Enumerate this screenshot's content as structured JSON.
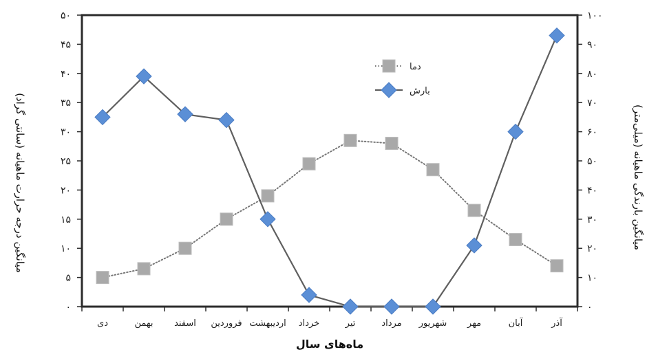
{
  "chart_data": {
    "type": "line",
    "categories": [
      "دی",
      "بهمن",
      "اسفند",
      "فروردین",
      "اردیبهشت",
      "خرداد",
      "تیر",
      "مرداد",
      "شهریور",
      "مهر",
      "آبان",
      "آذر"
    ],
    "xlabel": "ماه‌های سال",
    "ylabel_left": "میانگین درجه حرارت ماهیانه (سانتی گراد)",
    "ylabel_right": "میانگین بارندگی ماهیانه (میلی‌متر)",
    "ylim_left": [
      0,
      50
    ],
    "ylim_right": [
      0,
      100
    ],
    "yticks_left": [
      "۰",
      "۵",
      "۱۰",
      "۱۵",
      "۲۰",
      "۲۵",
      "۳۰",
      "۳۵",
      "۴۰",
      "۴۵",
      "۵۰"
    ],
    "yticks_right": [
      "۰",
      "۱۰",
      "۲۰",
      "۳۰",
      "۴۰",
      "۵۰",
      "۶۰",
      "۷۰",
      "۸۰",
      "۹۰",
      "۱۰۰"
    ],
    "grid": false,
    "legend_position": "top-center",
    "series": [
      {
        "name": "دما",
        "axis": "left",
        "marker": "square",
        "line": "dotted",
        "color": "#a9a9a9",
        "values": [
          5,
          6.5,
          10,
          15,
          19,
          24.5,
          28.5,
          28,
          23.5,
          16.5,
          11.5,
          7
        ]
      },
      {
        "name": "بارش",
        "axis": "right",
        "marker": "diamond",
        "line": "solid",
        "color": "#5b8fd6",
        "values": [
          65,
          79,
          66,
          64,
          30,
          4,
          0,
          0,
          0,
          21,
          60,
          93
        ]
      }
    ]
  }
}
